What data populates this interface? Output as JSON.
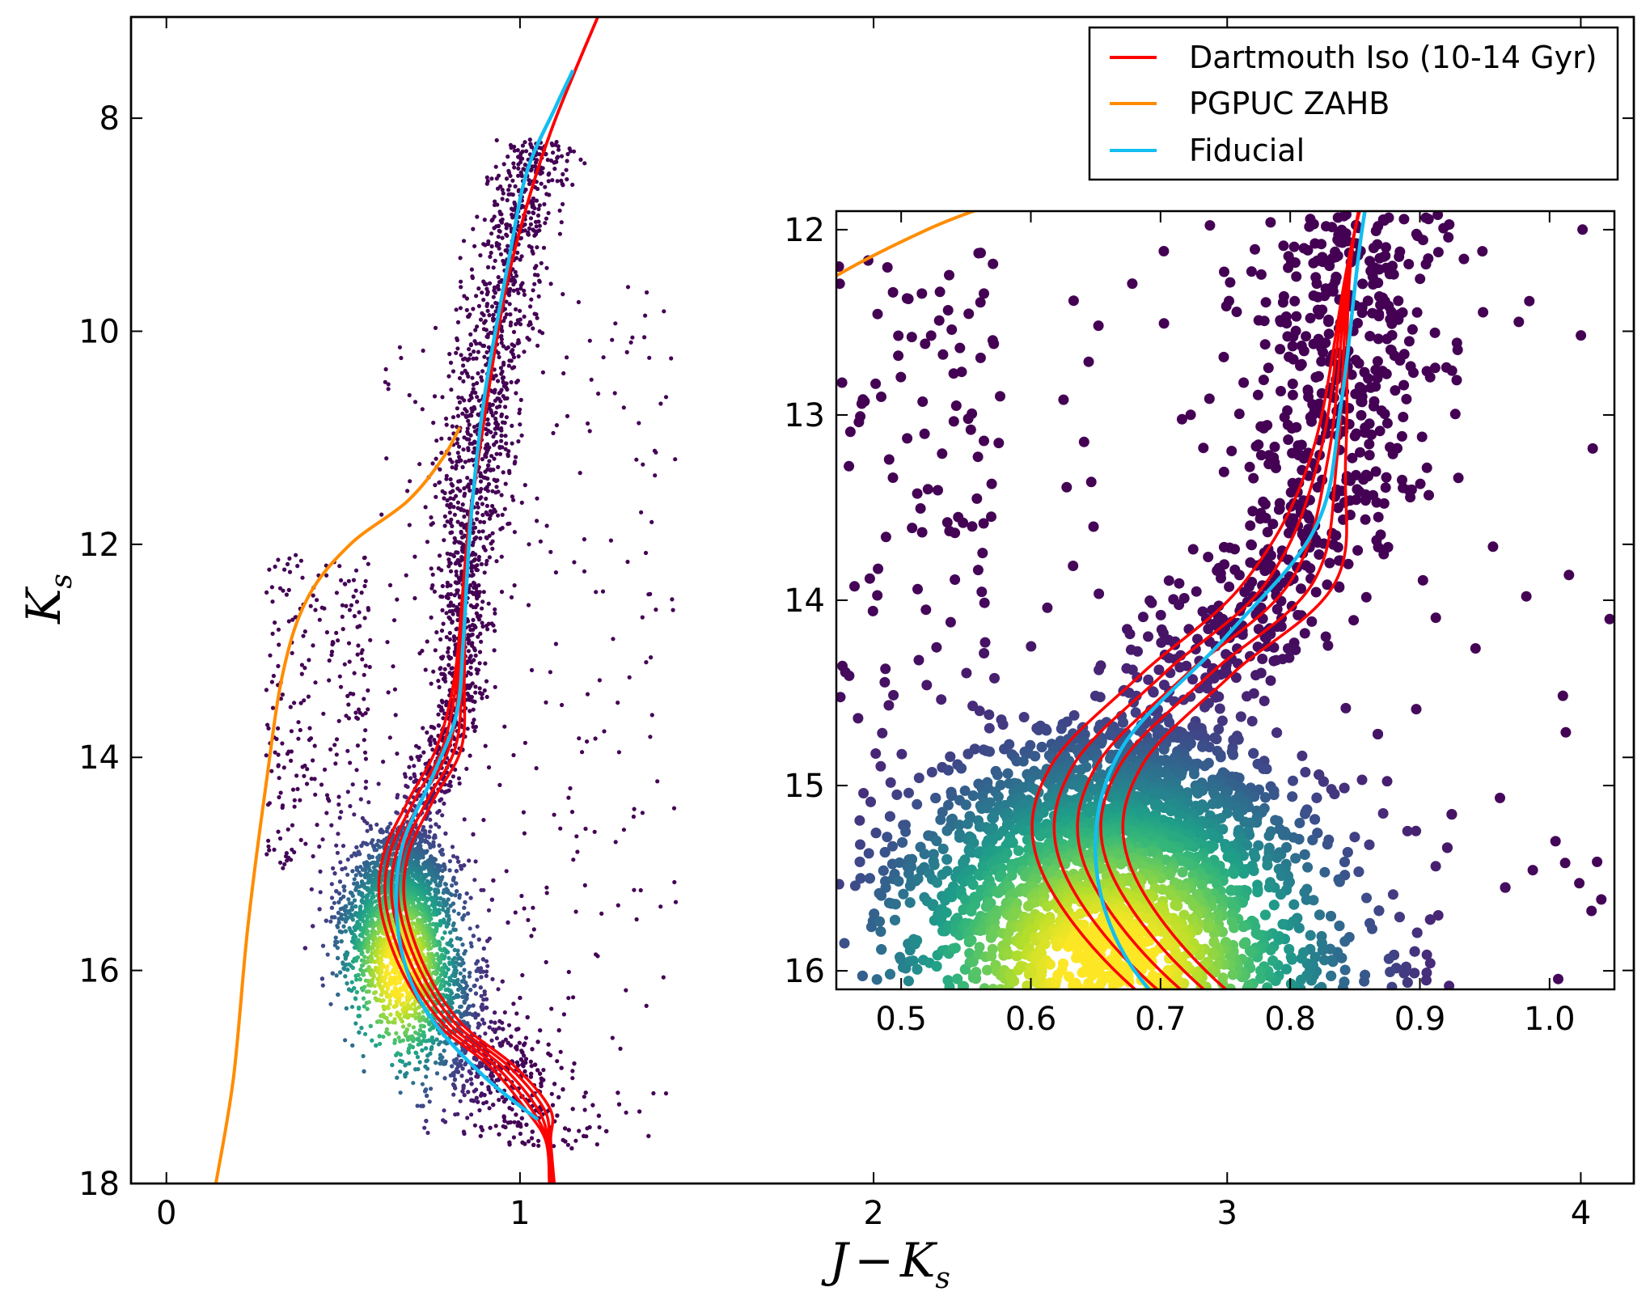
{
  "chart_data": [
    {
      "id": "main",
      "type": "scatter",
      "title": "",
      "xlabel_main": "J",
      "xlabel_minus": "−",
      "xlabel_sym": "K",
      "xlabel_sub": "s",
      "ylabel_sym": "K",
      "ylabel_sub": "s",
      "xlim": [
        -0.1,
        4.15
      ],
      "ylim": [
        18,
        7.05
      ],
      "y_inverted": true,
      "xticks": [
        0,
        1,
        2,
        3,
        4
      ],
      "xtick_labels": [
        "0",
        "1",
        "2",
        "3",
        "4"
      ],
      "yticks": [
        8,
        10,
        12,
        14,
        16,
        18
      ],
      "ytick_labels": [
        "8",
        "10",
        "12",
        "14",
        "16",
        "18"
      ],
      "density_core": {
        "color_center": [
          0.66,
          15.9
        ],
        "note": "density-coloured point cloud (viridis)"
      },
      "series": [
        {
          "name": "Dartmouth Iso (10-14 Gyr)",
          "color": "#ff0000",
          "points": [
            [
              1.09,
              18.0
            ],
            [
              1.08,
              17.6
            ],
            [
              1.05,
              17.3
            ],
            [
              0.95,
              16.9
            ],
            [
              0.8,
              16.5
            ],
            [
              0.7,
              16.0
            ],
            [
              0.64,
              15.4
            ],
            [
              0.65,
              14.9
            ],
            [
              0.72,
              14.4
            ],
            [
              0.8,
              13.9
            ],
            [
              0.83,
              13.2
            ],
            [
              0.85,
              12.0
            ],
            [
              0.9,
              10.8
            ],
            [
              0.96,
              9.6
            ],
            [
              1.03,
              8.7
            ],
            [
              1.09,
              8.1
            ],
            [
              1.15,
              7.6
            ],
            [
              1.22,
              7.05
            ]
          ],
          "spread": [
            -0.035,
            -0.018,
            0,
            0.018,
            0.035
          ]
        },
        {
          "name": "PGPUC ZAHB",
          "color": "#ff8c00",
          "points": [
            [
              0.14,
              18.0
            ],
            [
              0.19,
              17.0
            ],
            [
              0.23,
              15.6
            ],
            [
              0.28,
              14.3
            ],
            [
              0.33,
              13.2
            ],
            [
              0.4,
              12.5
            ],
            [
              0.52,
              12.0
            ],
            [
              0.68,
              11.6
            ],
            [
              0.78,
              11.2
            ],
            [
              0.83,
              10.9
            ]
          ]
        },
        {
          "name": "Fiducial",
          "color": "#13bef0",
          "points": [
            [
              1.05,
              17.4
            ],
            [
              0.9,
              17.0
            ],
            [
              0.76,
              16.5
            ],
            [
              0.68,
              16.0
            ],
            [
              0.65,
              15.4
            ],
            [
              0.67,
              14.8
            ],
            [
              0.75,
              14.2
            ],
            [
              0.82,
              13.6
            ],
            [
              0.84,
              12.9
            ],
            [
              0.86,
              11.8
            ],
            [
              0.9,
              10.6
            ],
            [
              0.97,
              9.3
            ],
            [
              1.02,
              8.5
            ],
            [
              1.1,
              7.9
            ],
            [
              1.15,
              7.55
            ]
          ]
        }
      ]
    },
    {
      "id": "inset",
      "type": "scatter",
      "xlim": [
        0.45,
        1.05
      ],
      "ylim": [
        16.1,
        11.9
      ],
      "y_inverted": true,
      "xticks": [
        0.5,
        0.6,
        0.7,
        0.8,
        0.9,
        1.0
      ],
      "xtick_labels": [
        "0.5",
        "0.6",
        "0.7",
        "0.8",
        "0.9",
        "1.0"
      ],
      "yticks": [
        12,
        13,
        14,
        15,
        16
      ],
      "ytick_labels": [
        "12",
        "13",
        "14",
        "15",
        "16"
      ],
      "density_core": {
        "color_center": [
          0.62,
          15.8
        ],
        "note": "density-coloured point cloud (viridis)"
      }
    }
  ],
  "legend": {
    "position": "top-right",
    "entries": [
      {
        "label": "Dartmouth Iso (10-14 Gyr)",
        "color": "#ff0000"
      },
      {
        "label": "PGPUC ZAHB",
        "color": "#ff8c00"
      },
      {
        "label": "Fiducial",
        "color": "#13bef0"
      }
    ]
  }
}
